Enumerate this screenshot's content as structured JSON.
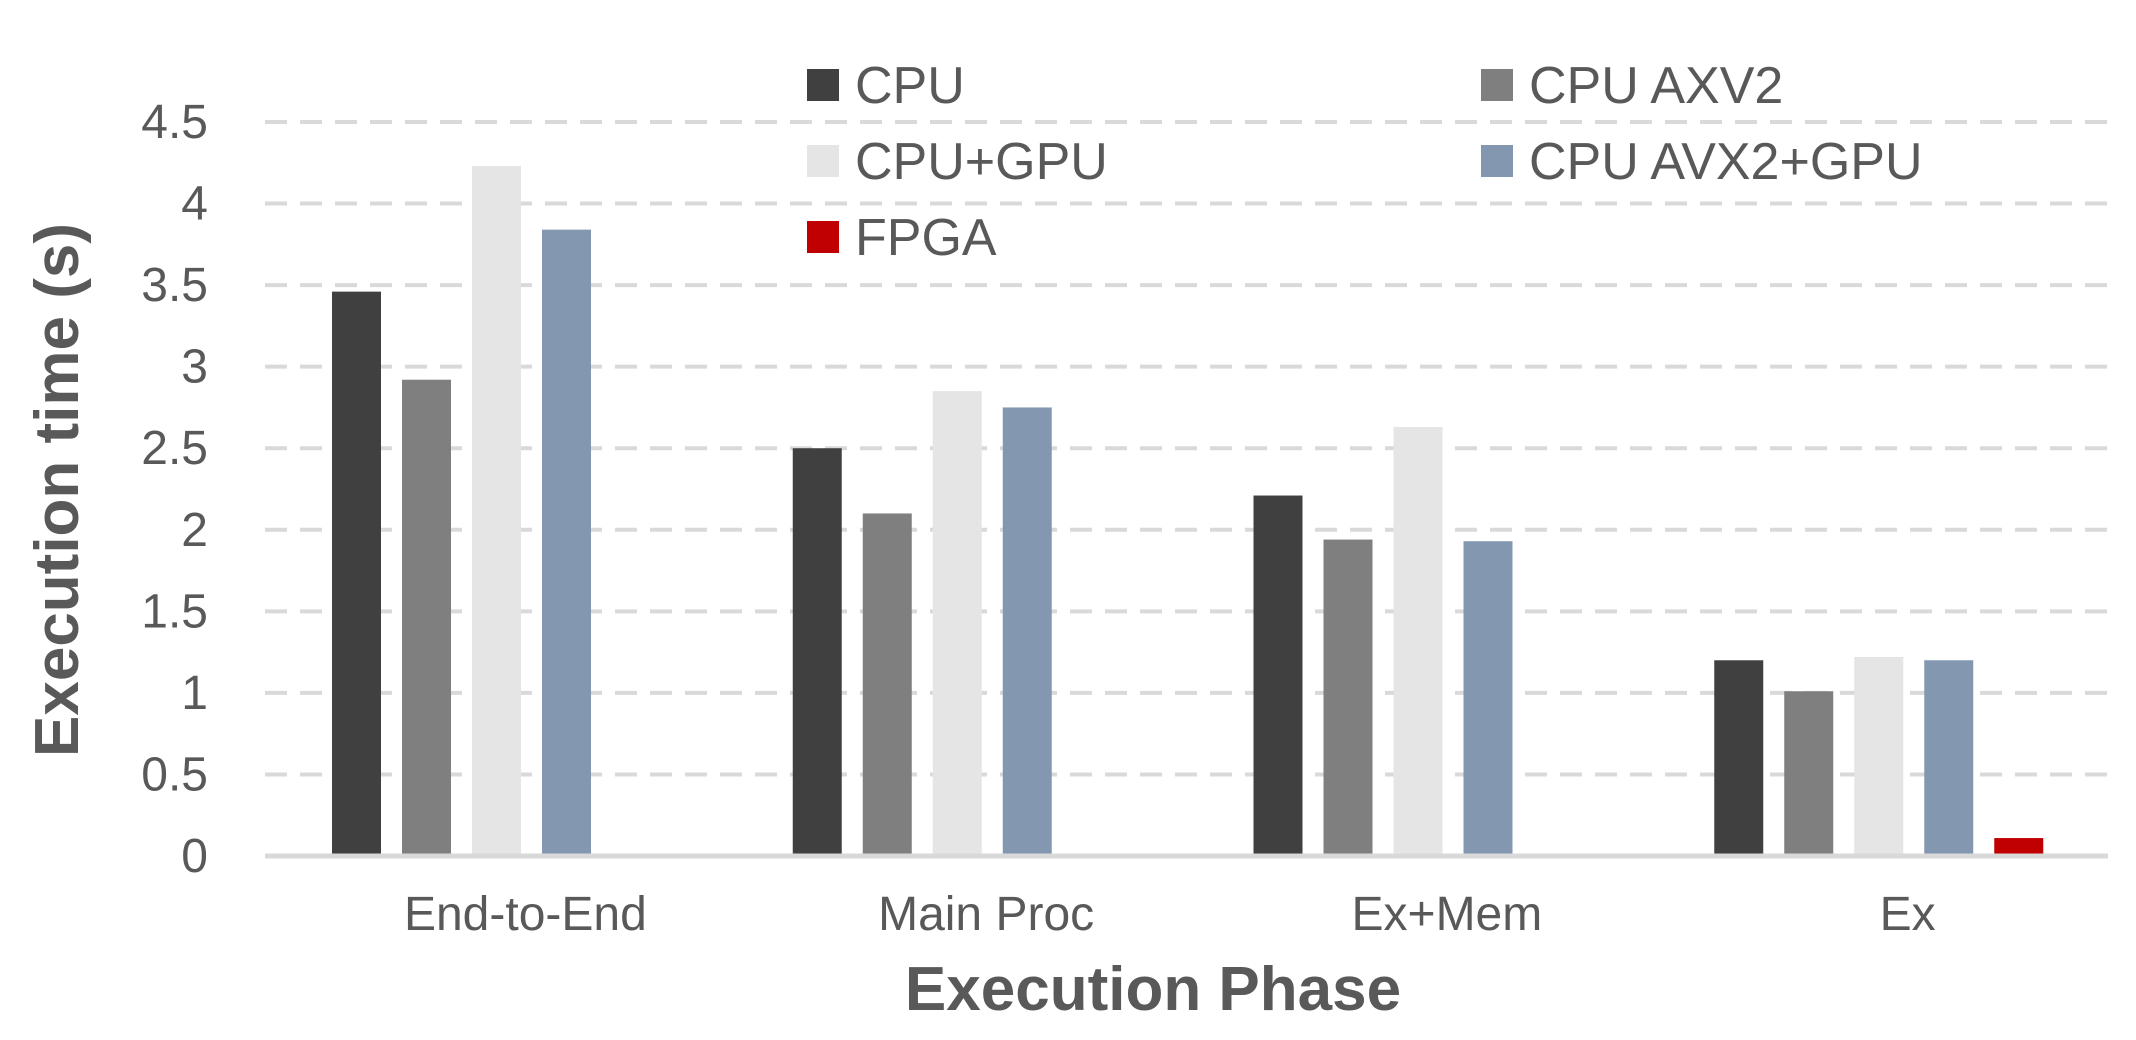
{
  "chart_data": {
    "type": "bar",
    "title": "",
    "xlabel": "Execution Phase",
    "ylabel": "Execution time (s)",
    "ylim": [
      0,
      4.5
    ],
    "yticks": [
      0,
      0.5,
      1,
      1.5,
      2,
      2.5,
      3,
      3.5,
      4,
      4.5
    ],
    "ytick_labels": [
      "0",
      "0.5",
      "1",
      "1.5",
      "2",
      "2.5",
      "3",
      "3.5",
      "4",
      "4.5"
    ],
    "grid": "horizontal dashed",
    "legend_position": "top",
    "categories": [
      "End-to-End",
      "Main Proc",
      "Ex+Mem",
      "Ex"
    ],
    "series": [
      {
        "name": "CPU",
        "color": "#404040",
        "values": [
          3.46,
          2.5,
          2.21,
          1.2
        ]
      },
      {
        "name": "CPU AXV2",
        "color": "#7f7f7f",
        "values": [
          2.92,
          2.1,
          1.94,
          1.01
        ]
      },
      {
        "name": "CPU+GPU",
        "color": "#e5e5e5",
        "values": [
          4.23,
          2.85,
          2.63,
          1.22
        ]
      },
      {
        "name": "CPU AVX2+GPU",
        "color": "#8497b0",
        "values": [
          3.84,
          2.75,
          1.93,
          1.2
        ]
      },
      {
        "name": "FPGA",
        "color": "#c00000",
        "values": [
          null,
          null,
          null,
          0.11
        ]
      }
    ]
  }
}
